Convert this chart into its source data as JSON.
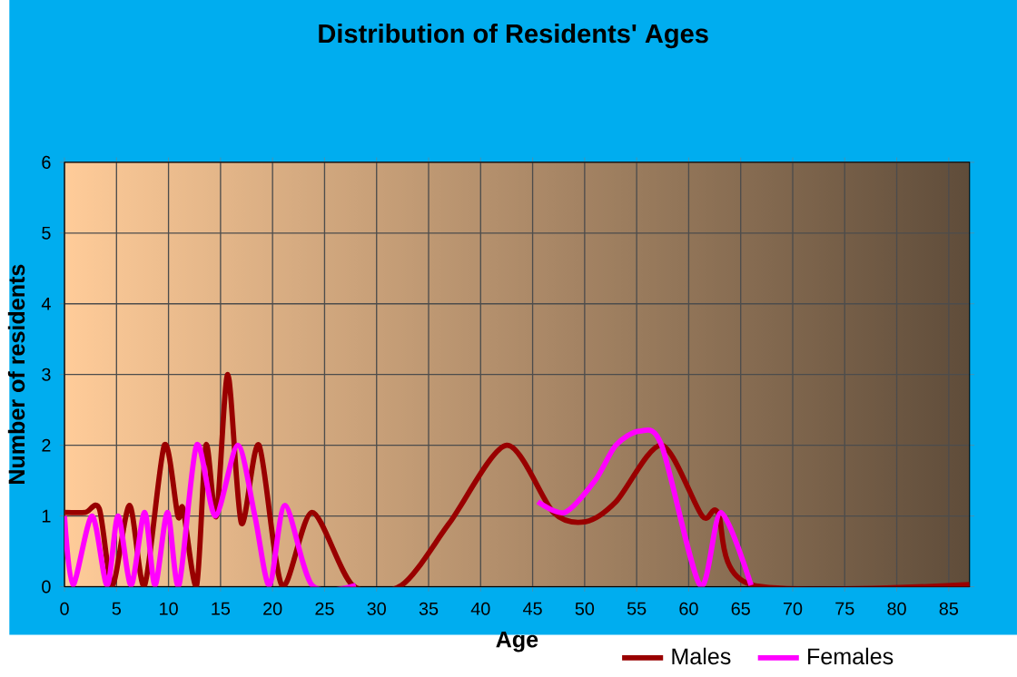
{
  "chart_data": {
    "type": "line",
    "title": "Distribution of Residents' Ages",
    "xlabel": "Age",
    "ylabel": "Number of residents",
    "xlim": [
      0,
      87
    ],
    "ylim": [
      0,
      6
    ],
    "xticks": [
      0,
      5,
      10,
      15,
      20,
      25,
      30,
      35,
      40,
      45,
      50,
      55,
      60,
      65,
      70,
      75,
      80,
      85
    ],
    "yticks": [
      0,
      1,
      2,
      3,
      4,
      5,
      6
    ],
    "grid": true,
    "legend": "bottom right",
    "series": [
      {
        "name": "Males",
        "color": "#990000",
        "x": [
          0,
          2,
          3.35,
          4.6,
          6.25,
          7.7,
          9.6,
          10.9,
          11.4,
          12.7,
          13.6,
          14.6,
          15.7,
          17,
          18.7,
          20.9,
          23.8,
          27.7,
          32.4,
          37,
          42.5,
          47,
          50.1,
          53,
          57.4,
          61.3,
          62.8,
          66,
          87
        ],
        "values": [
          1.05,
          1.05,
          1.1,
          0.02,
          1.15,
          0.02,
          2.0,
          1.0,
          1.1,
          0.02,
          2.0,
          1.0,
          3.0,
          0.9,
          2.0,
          0.02,
          1.05,
          0.02,
          0.02,
          0.9,
          2.0,
          1.05,
          0.92,
          1.2,
          2.0,
          1.0,
          1.05,
          0.03,
          0.03
        ]
      },
      {
        "name": "Females",
        "color": "#ff00ff",
        "x": [
          0,
          0.8,
          2.65,
          4.1,
          5.15,
          6.4,
          7.7,
          8.7,
          9.9,
          11.0,
          12.7,
          14.5,
          16.65,
          18.3,
          19.7,
          21.2,
          23.8,
          28,
          30,
          45.5,
          48.1,
          51,
          53,
          55.3,
          57.4,
          61.1,
          63.1,
          66
        ],
        "values": [
          1.0,
          0.02,
          1.0,
          0.02,
          1.0,
          0.02,
          1.05,
          0.02,
          1.05,
          0.02,
          2.0,
          1.0,
          2.0,
          1.0,
          0.02,
          1.15,
          0.02,
          0.02,
          null,
          1.2,
          1.05,
          1.5,
          2.0,
          2.2,
          2.0,
          0.02,
          1.05,
          0.02
        ]
      }
    ]
  }
}
